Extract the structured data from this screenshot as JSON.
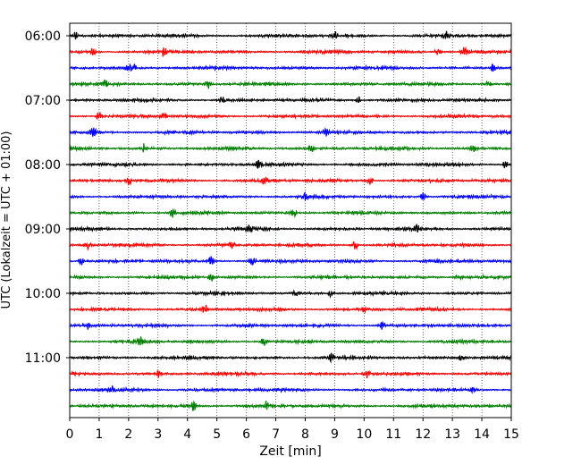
{
  "chart_data": {
    "type": "line",
    "subtype": "helicorder",
    "title": "",
    "xlabel": "Zeit  [min]",
    "ylabel": "UTC (Lokalzeit = UTC + 01:00)",
    "xlim": [
      0,
      15
    ],
    "x_ticks": [
      0,
      1,
      2,
      3,
      4,
      5,
      6,
      7,
      8,
      9,
      10,
      11,
      12,
      13,
      14,
      15
    ],
    "x_tick_labels": [
      "0",
      "1",
      "2",
      "3",
      "4",
      "5",
      "6",
      "7",
      "8",
      "9",
      "10",
      "11",
      "12",
      "13",
      "14",
      "15"
    ],
    "y_tick_labels": [
      "06:00",
      "07:00",
      "08:00",
      "09:00",
      "10:00",
      "11:00"
    ],
    "trace_interval_minutes": 15,
    "trace_colors": [
      "#000000",
      "#ff0000",
      "#0000ff",
      "#008000"
    ],
    "traces": [
      {
        "start": "06:00",
        "bursts_min": [
          0.2,
          9.0,
          12.8
        ]
      },
      {
        "start": "06:15",
        "bursts_min": [
          0.8,
          3.2,
          12.5,
          13.4
        ]
      },
      {
        "start": "06:30",
        "bursts_min": [
          2.0,
          2.2,
          14.4
        ]
      },
      {
        "start": "06:45",
        "bursts_min": [
          1.2,
          4.7,
          14.2
        ]
      },
      {
        "start": "07:00",
        "bursts_min": [
          5.2,
          9.8
        ]
      },
      {
        "start": "07:15",
        "bursts_min": [
          3.2,
          1.0
        ]
      },
      {
        "start": "07:30",
        "bursts_min": [
          0.8,
          8.7
        ]
      },
      {
        "start": "07:45",
        "bursts_min": [
          2.5,
          8.2,
          13.7
        ]
      },
      {
        "start": "08:00",
        "bursts_min": [
          6.4,
          14.8
        ]
      },
      {
        "start": "08:15",
        "bursts_min": [
          2.0,
          6.6,
          10.2
        ]
      },
      {
        "start": "08:30",
        "bursts_min": [
          8.0,
          12.0
        ]
      },
      {
        "start": "08:45",
        "bursts_min": [
          3.5,
          7.6
        ]
      },
      {
        "start": "09:00",
        "bursts_min": [
          6.1,
          11.8
        ]
      },
      {
        "start": "09:15",
        "bursts_min": [
          0.6,
          5.5,
          9.7
        ]
      },
      {
        "start": "09:30",
        "bursts_min": [
          0.4,
          4.8,
          6.2
        ]
      },
      {
        "start": "09:45",
        "bursts_min": [
          4.8,
          13.2
        ]
      },
      {
        "start": "10:00",
        "bursts_min": [
          7.7,
          8.9
        ]
      },
      {
        "start": "10:15",
        "bursts_min": [
          4.6,
          10.0
        ]
      },
      {
        "start": "10:30",
        "bursts_min": [
          0.6,
          10.6
        ]
      },
      {
        "start": "10:45",
        "bursts_min": [
          2.4,
          6.6
        ]
      },
      {
        "start": "11:00",
        "bursts_min": [
          8.9,
          13.3
        ]
      },
      {
        "start": "11:15",
        "bursts_min": [
          3.0,
          10.1
        ]
      },
      {
        "start": "11:30",
        "bursts_min": [
          1.4,
          13.7
        ]
      },
      {
        "start": "11:45",
        "bursts_min": [
          4.2,
          6.7
        ]
      }
    ],
    "grid": {
      "x": "dotted",
      "y": "off"
    },
    "legend": "none"
  }
}
